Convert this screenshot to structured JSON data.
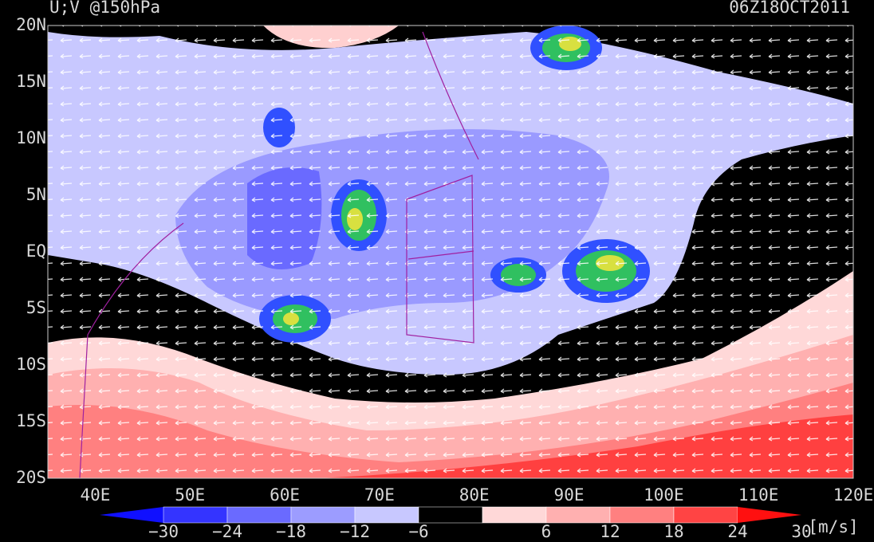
{
  "header": {
    "title": "U;V @150hPa",
    "timestamp": "06Z18OCT2011"
  },
  "lat_labels": [
    "20N",
    "15N",
    "10N",
    "5N",
    "EQ",
    "5S",
    "10S",
    "15S",
    "20S"
  ],
  "lon_labels": [
    "40E",
    "50E",
    "60E",
    "70E",
    "80E",
    "90E",
    "100E",
    "110E",
    "120E"
  ],
  "colorbar": {
    "labels": [
      "−30",
      "−24",
      "−18",
      "−12",
      "−6",
      "6",
      "12",
      "18",
      "24",
      "30"
    ],
    "unit": "[m/s]"
  }
}
